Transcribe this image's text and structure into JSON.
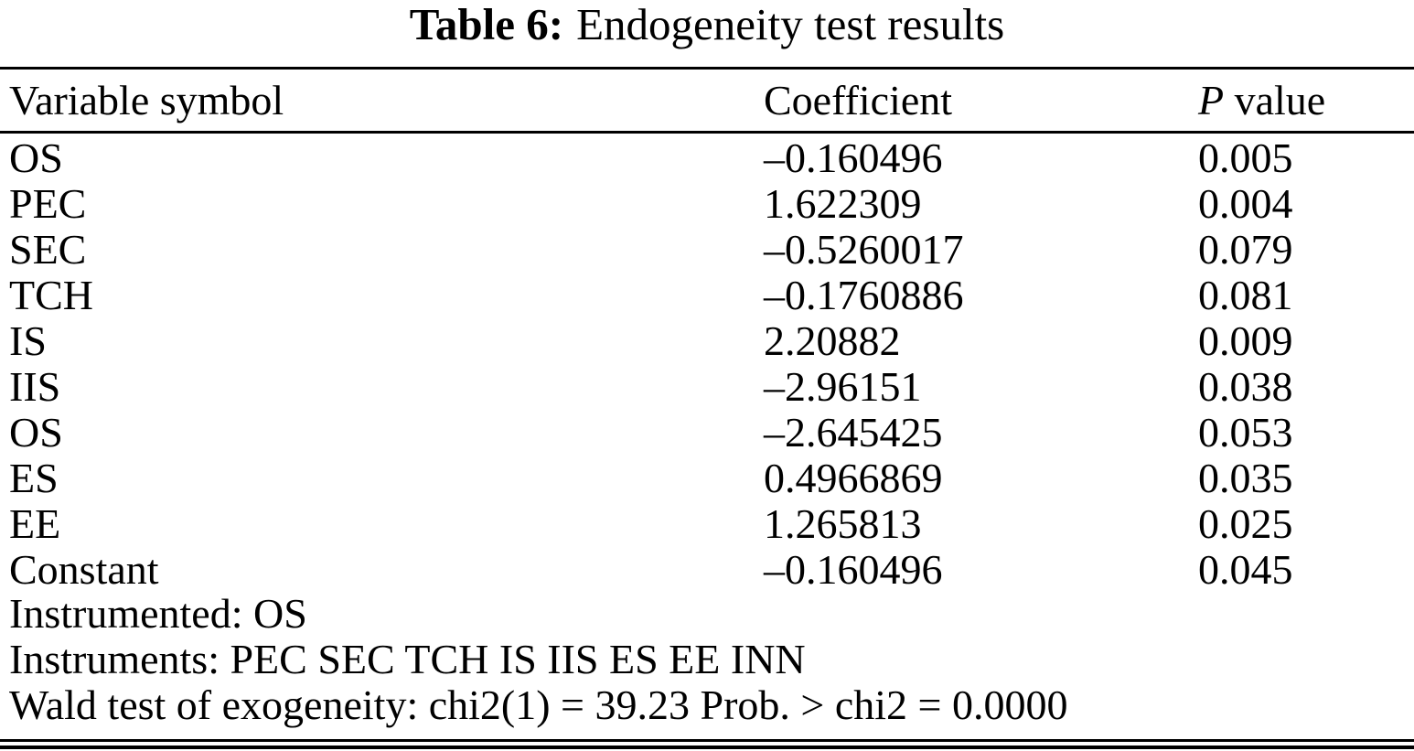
{
  "caption": {
    "label": "Table 6:",
    "text": "Endogeneity test results"
  },
  "table": {
    "columns": [
      {
        "label": "Variable symbol"
      },
      {
        "label": "Coefficient"
      },
      {
        "label": "P value",
        "italic_part": "P",
        "rest_part": " value"
      }
    ],
    "rows": [
      {
        "variable": "OS",
        "coefficient": "–0.160496",
        "p_value": "0.005"
      },
      {
        "variable": "PEC",
        "coefficient": "1.622309",
        "p_value": "0.004"
      },
      {
        "variable": "SEC",
        "coefficient": "–0.5260017",
        "p_value": "0.079"
      },
      {
        "variable": "TCH",
        "coefficient": "–0.1760886",
        "p_value": "0.081"
      },
      {
        "variable": "IS",
        "coefficient": "2.20882",
        "p_value": "0.009"
      },
      {
        "variable": "IIS",
        "coefficient": "–2.96151",
        "p_value": "0.038"
      },
      {
        "variable": "OS",
        "coefficient": "–2.645425",
        "p_value": "0.053"
      },
      {
        "variable": "ES",
        "coefficient": "0.4966869",
        "p_value": "0.035"
      },
      {
        "variable": "EE",
        "coefficient": "1.265813",
        "p_value": "0.025"
      },
      {
        "variable": "Constant",
        "coefficient": "–0.160496",
        "p_value": "0.045"
      }
    ],
    "notes": [
      "Instrumented: OS",
      "Instruments: PEC SEC TCH IS IIS ES EE INN",
      "Wald test of exogeneity: chi2(1) = 39.23 Prob. > chi2 = 0.0000"
    ]
  }
}
